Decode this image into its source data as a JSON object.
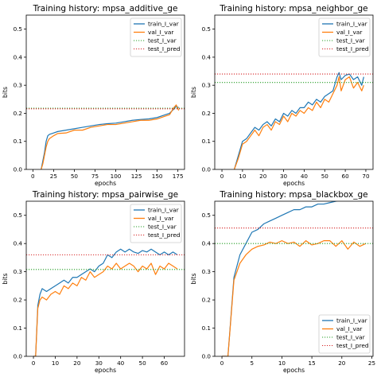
{
  "colors": {
    "train": "#1f77b4",
    "val": "#ff7f0e",
    "test_I_var": "#2ca02c",
    "test_I_pred": "#d62728"
  },
  "chart_data": [
    {
      "type": "line",
      "title": "Training history: mpsa_additive_ge",
      "xlabel": "epochs",
      "ylabel": "bits",
      "xlim": [
        -8,
        183
      ],
      "ylim": [
        0,
        0.55
      ],
      "xticks": [
        0,
        25,
        50,
        75,
        100,
        125,
        150,
        175
      ],
      "yticks": [
        0.0,
        0.1,
        0.2,
        0.3,
        0.4,
        0.5
      ],
      "legend_position": "top-right",
      "series": [
        {
          "name": "train_I_var",
          "color": "#1f77b4",
          "x": [
            10,
            12,
            14,
            16,
            18,
            20,
            25,
            30,
            40,
            50,
            60,
            70,
            80,
            90,
            100,
            110,
            120,
            130,
            140,
            150,
            160,
            165,
            170,
            173,
            176
          ],
          "y": [
            0.0,
            0.03,
            0.06,
            0.1,
            0.12,
            0.125,
            0.13,
            0.135,
            0.14,
            0.145,
            0.15,
            0.155,
            0.16,
            0.163,
            0.165,
            0.17,
            0.175,
            0.178,
            0.18,
            0.185,
            0.195,
            0.2,
            0.215,
            0.225,
            0.22
          ]
        },
        {
          "name": "val_I_var",
          "color": "#ff7f0e",
          "x": [
            10,
            12,
            14,
            16,
            18,
            20,
            25,
            30,
            40,
            50,
            60,
            70,
            80,
            90,
            100,
            110,
            120,
            130,
            140,
            150,
            160,
            165,
            170,
            173,
            176
          ],
          "y": [
            0.0,
            0.02,
            0.05,
            0.08,
            0.1,
            0.11,
            0.12,
            0.128,
            0.13,
            0.14,
            0.14,
            0.15,
            0.155,
            0.16,
            0.16,
            0.165,
            0.17,
            0.175,
            0.175,
            0.18,
            0.19,
            0.195,
            0.22,
            0.23,
            0.21
          ]
        },
        {
          "name": "test_I_var",
          "color": "#2ca02c",
          "dotted": true,
          "hline": 0.218
        },
        {
          "name": "test_I_pred",
          "color": "#d62728",
          "dotted": true,
          "hline": 0.216
        }
      ]
    },
    {
      "type": "line",
      "title": "Training history: mpsa_neighbor_ge",
      "xlabel": "epochs",
      "ylabel": "bits",
      "xlim": [
        -3.5,
        73.5
      ],
      "ylim": [
        0,
        0.55
      ],
      "xticks": [
        0,
        10,
        20,
        30,
        40,
        50,
        60,
        70
      ],
      "yticks": [
        0.0,
        0.1,
        0.2,
        0.3,
        0.4,
        0.5
      ],
      "legend_position": "top-right",
      "series": [
        {
          "name": "train_I_var",
          "color": "#1f77b4",
          "x": [
            6,
            8,
            10,
            12,
            14,
            16,
            18,
            20,
            22,
            24,
            26,
            28,
            30,
            32,
            34,
            36,
            38,
            40,
            42,
            44,
            46,
            48,
            50,
            52,
            54,
            56,
            57,
            58,
            60,
            62,
            64,
            66,
            68,
            69
          ],
          "y": [
            0.0,
            0.05,
            0.1,
            0.11,
            0.13,
            0.15,
            0.14,
            0.16,
            0.17,
            0.155,
            0.18,
            0.17,
            0.2,
            0.19,
            0.21,
            0.2,
            0.22,
            0.22,
            0.24,
            0.23,
            0.25,
            0.24,
            0.26,
            0.27,
            0.28,
            0.33,
            0.345,
            0.32,
            0.335,
            0.34,
            0.32,
            0.33,
            0.3,
            0.33
          ]
        },
        {
          "name": "val_I_var",
          "color": "#ff7f0e",
          "x": [
            6,
            8,
            10,
            12,
            14,
            16,
            18,
            20,
            22,
            24,
            26,
            28,
            30,
            32,
            34,
            36,
            38,
            40,
            42,
            44,
            46,
            48,
            50,
            52,
            54,
            56,
            57,
            58,
            60,
            62,
            64,
            66,
            68,
            69
          ],
          "y": [
            0.0,
            0.04,
            0.09,
            0.1,
            0.12,
            0.14,
            0.12,
            0.15,
            0.16,
            0.14,
            0.17,
            0.16,
            0.19,
            0.17,
            0.2,
            0.19,
            0.21,
            0.2,
            0.22,
            0.21,
            0.24,
            0.22,
            0.25,
            0.24,
            0.27,
            0.3,
            0.33,
            0.28,
            0.32,
            0.33,
            0.29,
            0.31,
            0.28,
            0.3
          ]
        },
        {
          "name": "test_I_var",
          "color": "#2ca02c",
          "dotted": true,
          "hline": 0.31
        },
        {
          "name": "test_I_pred",
          "color": "#d62728",
          "dotted": true,
          "hline": 0.34
        }
      ]
    },
    {
      "type": "line",
      "title": "Training history: mpsa_pairwise_ge",
      "xlabel": "epochs",
      "ylabel": "bits",
      "xlim": [
        -3.3,
        69.3
      ],
      "ylim": [
        0,
        0.55
      ],
      "xticks": [
        0,
        10,
        20,
        30,
        40,
        50,
        60
      ],
      "yticks": [
        0.0,
        0.1,
        0.2,
        0.3,
        0.4,
        0.5
      ],
      "legend_position": "top-right",
      "series": [
        {
          "name": "train_I_var",
          "color": "#1f77b4",
          "x": [
            0,
            1,
            2,
            3,
            4,
            6,
            8,
            10,
            12,
            14,
            16,
            18,
            20,
            22,
            24,
            26,
            28,
            30,
            32,
            34,
            36,
            38,
            40,
            42,
            44,
            46,
            48,
            50,
            52,
            54,
            56,
            58,
            60,
            62,
            64,
            66
          ],
          "y": [
            0.0,
            0.0,
            0.18,
            0.22,
            0.24,
            0.23,
            0.24,
            0.25,
            0.26,
            0.27,
            0.26,
            0.28,
            0.28,
            0.29,
            0.3,
            0.31,
            0.3,
            0.32,
            0.33,
            0.36,
            0.35,
            0.37,
            0.38,
            0.37,
            0.38,
            0.37,
            0.365,
            0.375,
            0.37,
            0.38,
            0.37,
            0.36,
            0.37,
            0.36,
            0.37,
            0.36
          ]
        },
        {
          "name": "val_I_var",
          "color": "#ff7f0e",
          "x": [
            0,
            1,
            2,
            3,
            4,
            6,
            8,
            10,
            12,
            14,
            16,
            18,
            20,
            22,
            24,
            26,
            28,
            30,
            32,
            34,
            36,
            38,
            40,
            42,
            44,
            46,
            48,
            50,
            52,
            54,
            56,
            58,
            60,
            62,
            64,
            66
          ],
          "y": [
            0.0,
            0.0,
            0.17,
            0.2,
            0.21,
            0.2,
            0.22,
            0.23,
            0.22,
            0.25,
            0.24,
            0.26,
            0.25,
            0.28,
            0.27,
            0.3,
            0.28,
            0.29,
            0.3,
            0.32,
            0.31,
            0.33,
            0.31,
            0.32,
            0.33,
            0.32,
            0.3,
            0.32,
            0.31,
            0.33,
            0.29,
            0.32,
            0.31,
            0.33,
            0.32,
            0.31
          ]
        },
        {
          "name": "test_I_var",
          "color": "#2ca02c",
          "dotted": true,
          "hline": 0.308
        },
        {
          "name": "test_I_pred",
          "color": "#d62728",
          "dotted": true,
          "hline": 0.36
        }
      ]
    },
    {
      "type": "line",
      "title": "Training history: mpsa_blackbox_ge",
      "xlabel": "epochs",
      "ylabel": "bits",
      "xlim": [
        -1.2,
        25.2
      ],
      "ylim": [
        0,
        0.55
      ],
      "xticks": [
        0,
        5,
        10,
        15,
        20,
        25
      ],
      "yticks": [
        0.0,
        0.1,
        0.2,
        0.3,
        0.4,
        0.5
      ],
      "legend_position": "bottom-right",
      "series": [
        {
          "name": "train_I_var",
          "color": "#1f77b4",
          "x": [
            0,
            1,
            2,
            3,
            4,
            5,
            6,
            7,
            8,
            9,
            10,
            11,
            12,
            13,
            14,
            15,
            16,
            17,
            18,
            19,
            20,
            21,
            22,
            23,
            24
          ],
          "y": [
            0.0,
            0.0,
            0.28,
            0.36,
            0.4,
            0.44,
            0.45,
            0.47,
            0.48,
            0.49,
            0.5,
            0.51,
            0.52,
            0.52,
            0.53,
            0.53,
            0.54,
            0.54,
            0.545,
            0.55,
            0.555,
            0.56,
            0.565,
            0.57,
            0.575
          ]
        },
        {
          "name": "val_I_var",
          "color": "#ff7f0e",
          "x": [
            0,
            1,
            2,
            3,
            4,
            5,
            6,
            7,
            8,
            9,
            10,
            11,
            12,
            13,
            14,
            15,
            16,
            17,
            18,
            19,
            20,
            21,
            22,
            23,
            24
          ],
          "y": [
            0.0,
            0.0,
            0.27,
            0.33,
            0.36,
            0.38,
            0.39,
            0.395,
            0.405,
            0.4,
            0.41,
            0.4,
            0.405,
            0.39,
            0.41,
            0.395,
            0.4,
            0.41,
            0.41,
            0.39,
            0.41,
            0.38,
            0.405,
            0.39,
            0.4
          ]
        },
        {
          "name": "test_I_var",
          "color": "#2ca02c",
          "dotted": true,
          "hline": 0.4
        },
        {
          "name": "test_I_pred",
          "color": "#d62728",
          "dotted": true,
          "hline": 0.455
        }
      ]
    }
  ]
}
